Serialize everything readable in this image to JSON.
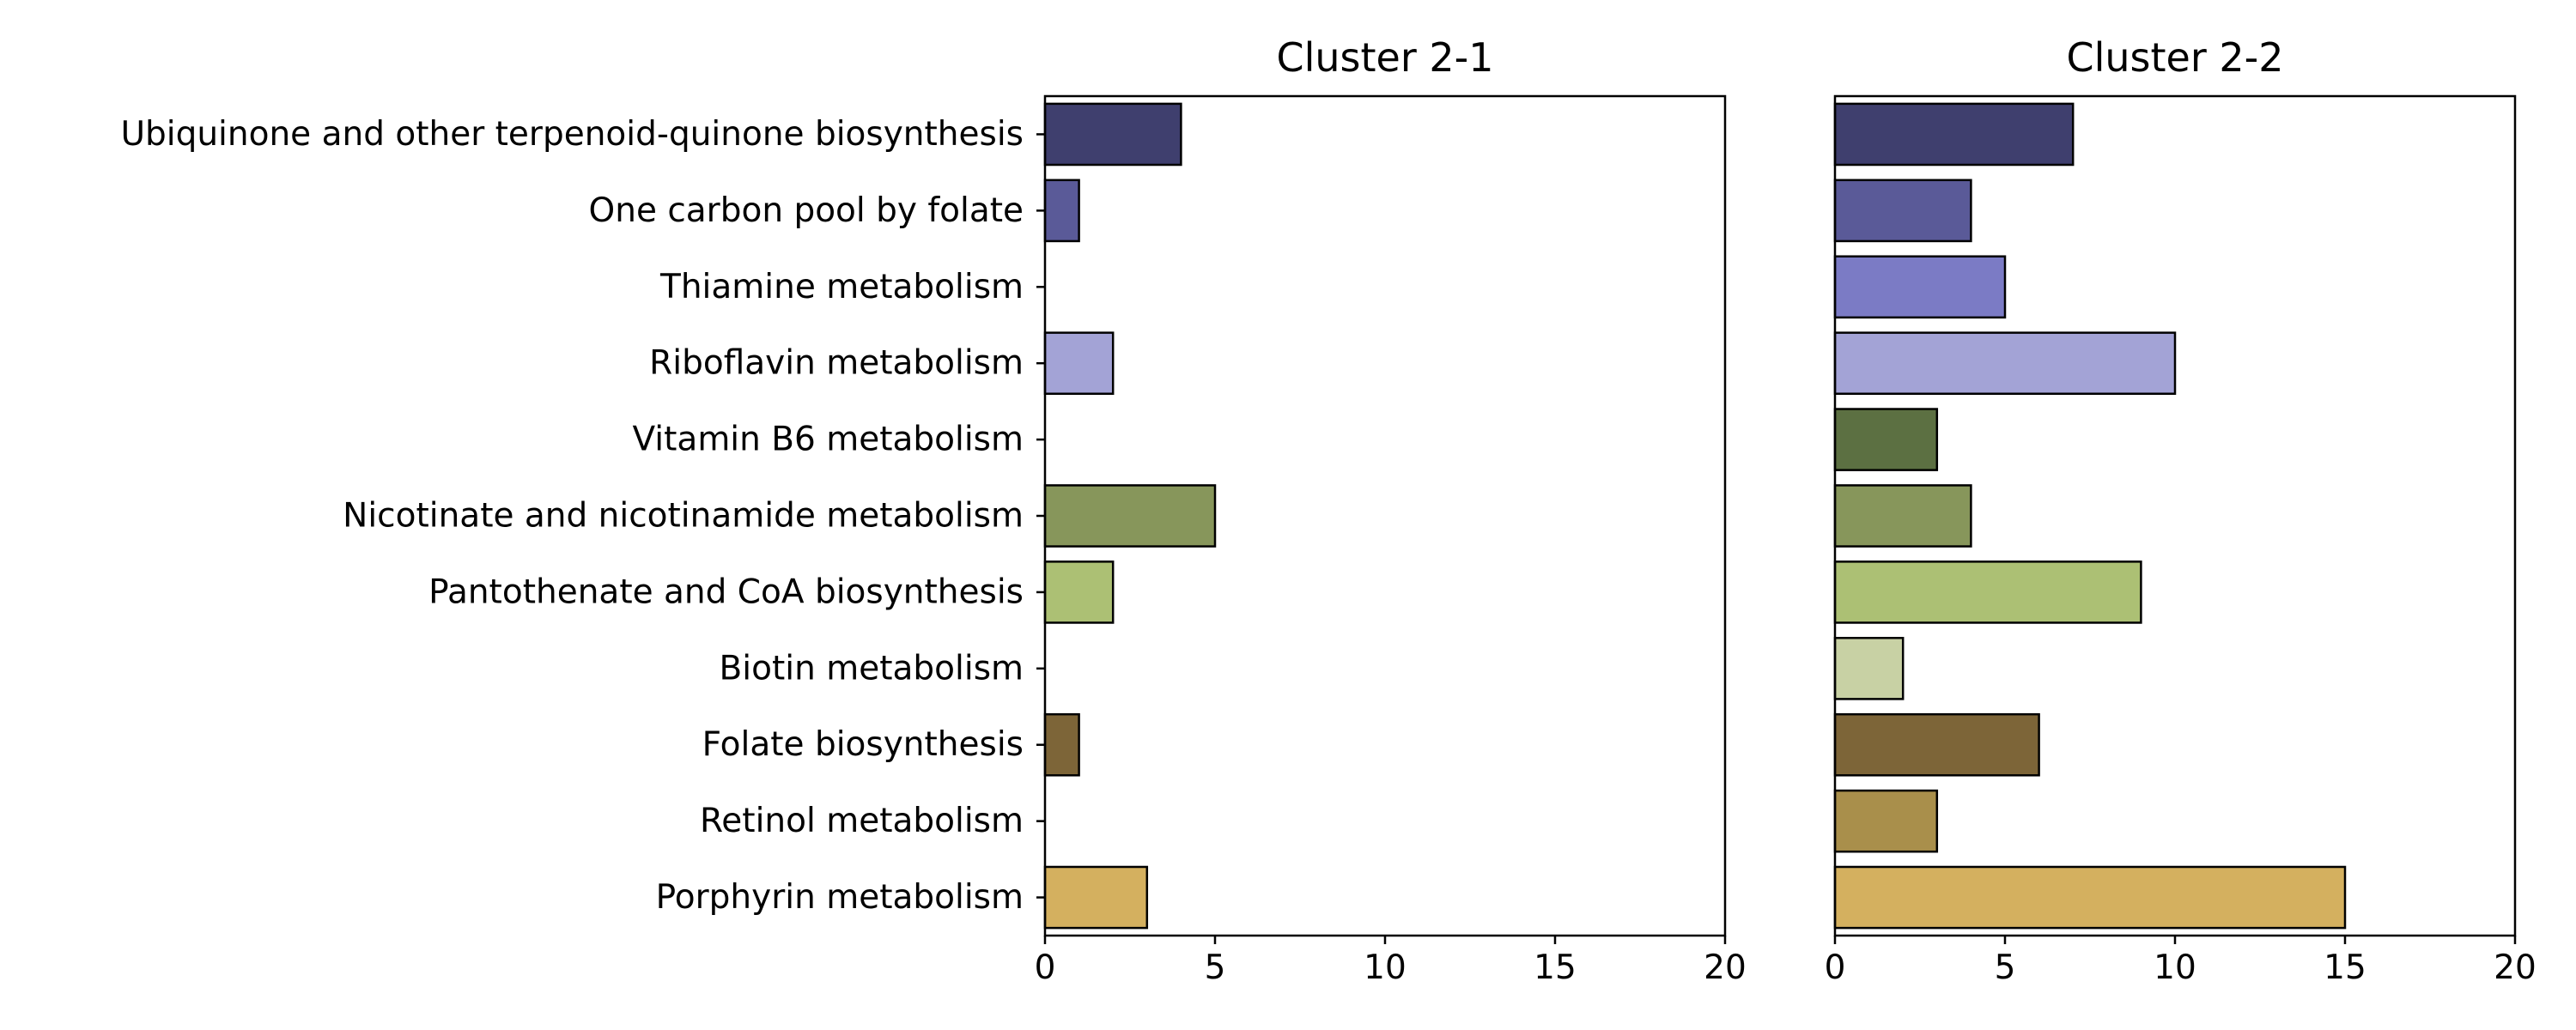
{
  "chart_data": [
    {
      "type": "bar",
      "orientation": "horizontal",
      "title": "Cluster 2-1",
      "xlabel": "",
      "ylabel": "",
      "xlim": [
        0,
        20
      ],
      "xticks": [
        "0",
        "5",
        "10",
        "15",
        "20"
      ],
      "categories": [
        "Ubiquinone and other terpenoid-quinone biosynthesis",
        "One carbon pool by folate",
        "Thiamine metabolism",
        "Riboflavin metabolism",
        "Vitamin B6 metabolism",
        "Nicotinate and nicotinamide metabolism",
        "Pantothenate and CoA biosynthesis",
        "Biotin metabolism",
        "Folate biosynthesis",
        "Retinol metabolism",
        "Porphyrin metabolism"
      ],
      "values": [
        4,
        1,
        0,
        2,
        0,
        5,
        2,
        0,
        1,
        0,
        3
      ],
      "colors": [
        "#3f3f6e",
        "#5a5a98",
        "#7b7bc5",
        "#a3a3d6",
        "#5c7042",
        "#87965b",
        "#acc074",
        "#c8d1a4",
        "#7d6538",
        "#a98f4b",
        "#d4b05f"
      ],
      "grid": false,
      "legend": "none"
    },
    {
      "type": "bar",
      "orientation": "horizontal",
      "title": "Cluster 2-2",
      "xlabel": "",
      "ylabel": "",
      "xlim": [
        0,
        20
      ],
      "xticks": [
        "0",
        "5",
        "10",
        "15",
        "20"
      ],
      "categories": [
        "Ubiquinone and other terpenoid-quinone biosynthesis",
        "One carbon pool by folate",
        "Thiamine metabolism",
        "Riboflavin metabolism",
        "Vitamin B6 metabolism",
        "Nicotinate and nicotinamide metabolism",
        "Pantothenate and CoA biosynthesis",
        "Biotin metabolism",
        "Folate biosynthesis",
        "Retinol metabolism",
        "Porphyrin metabolism"
      ],
      "values": [
        7,
        4,
        5,
        10,
        3,
        4,
        9,
        2,
        6,
        3,
        15
      ],
      "colors": [
        "#3f3f6e",
        "#5a5a98",
        "#7b7bc5",
        "#a3a3d6",
        "#5c7042",
        "#87965b",
        "#acc074",
        "#c8d1a4",
        "#7d6538",
        "#a98f4b",
        "#d4b05f"
      ],
      "grid": false,
      "legend": "none"
    }
  ]
}
